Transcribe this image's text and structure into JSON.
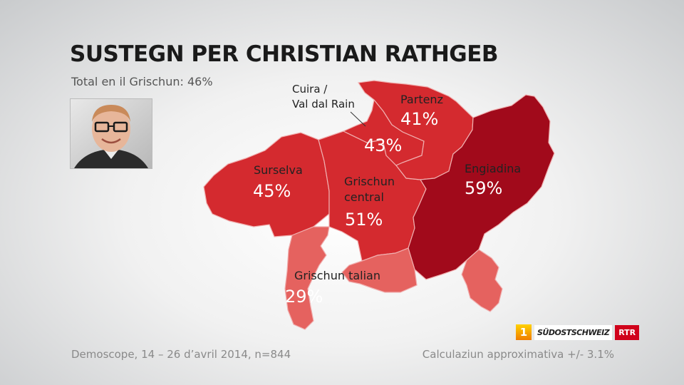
{
  "header": {
    "title": "SUSTEGN PER CHRISTIAN RATHGEB",
    "subtitle": "Total en il Grischun: 46%"
  },
  "photo": {
    "icon": "portrait-photo"
  },
  "regions": [
    {
      "name": "Cuira /",
      "name2": "Val dal Rain",
      "value": "43%",
      "color": "#d42a2f"
    },
    {
      "name": "Partenz",
      "value": "41%",
      "color": "#d42a2f"
    },
    {
      "name": "Surselva",
      "value": "45%",
      "color": "#d42a2f"
    },
    {
      "name": "Grischun",
      "name2": "central",
      "value": "51%",
      "color": "#d42a2f"
    },
    {
      "name": "Engiadina",
      "value": "59%",
      "color": "#a10a1b"
    },
    {
      "name": "Grischun talian",
      "value": "29%",
      "color": "#e5625f"
    }
  ],
  "logos": {
    "one": "1",
    "sudostschweiz": "SÜDOSTSCHWEIZ",
    "rtr": "RTR"
  },
  "footer": {
    "source": "Demoscope, 14 – 26 d’avril 2014, n=844",
    "margin": "Calculaziun approximativa +/- 3.1%"
  }
}
